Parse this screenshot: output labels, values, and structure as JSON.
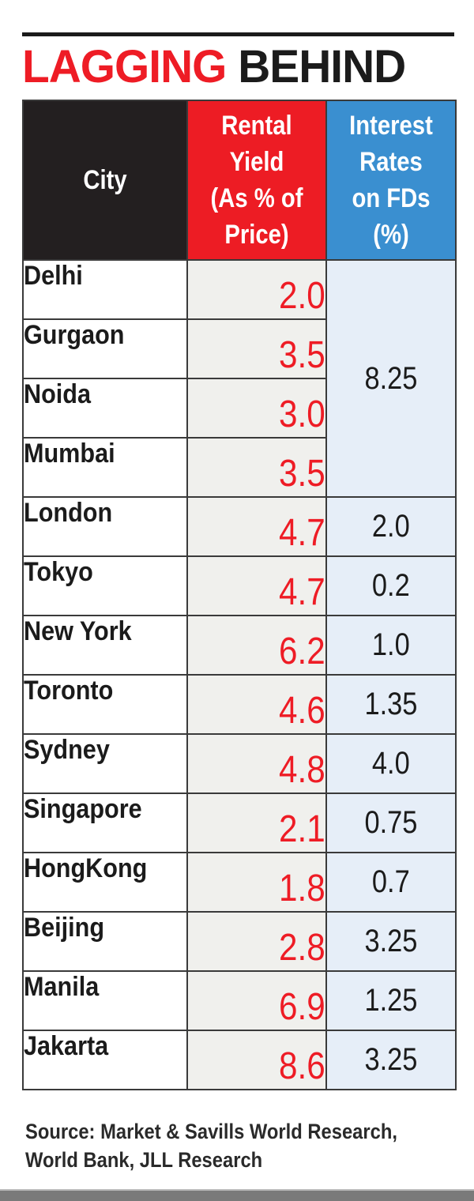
{
  "title": {
    "part1": "LAGGING",
    "part2": "BEHIND"
  },
  "colors": {
    "title_red": "#ee1c25",
    "header_city": "#231f20",
    "header_rental": "#ed1c24",
    "header_fd": "#3a8fd0",
    "rental_value": "#ee1c25",
    "fd_cell_bg": "#e6eef8",
    "rental_cell_bg": "#f0f0ed"
  },
  "table": {
    "headers": {
      "city": "City",
      "rental": [
        "Rental",
        "Yield",
        "(As % of",
        "Price)"
      ],
      "fd": [
        "Interest",
        "Rates",
        "on FDs",
        "(%)"
      ]
    },
    "indian_cities_fd_merged": "8.25",
    "rows": [
      {
        "city": "Delhi",
        "rental_yield": "2.0",
        "fd_rate": "8.25"
      },
      {
        "city": "Gurgaon",
        "rental_yield": "3.5",
        "fd_rate": "8.25"
      },
      {
        "city": "Noida",
        "rental_yield": "3.0",
        "fd_rate": "8.25"
      },
      {
        "city": "Mumbai",
        "rental_yield": "3.5",
        "fd_rate": "8.25"
      },
      {
        "city": "London",
        "rental_yield": "4.7",
        "fd_rate": "2.0"
      },
      {
        "city": "Tokyo",
        "rental_yield": "4.7",
        "fd_rate": "0.2"
      },
      {
        "city": "New York",
        "rental_yield": "6.2",
        "fd_rate": "1.0"
      },
      {
        "city": "Toronto",
        "rental_yield": "4.6",
        "fd_rate": "1.35"
      },
      {
        "city": "Sydney",
        "rental_yield": "4.8",
        "fd_rate": "4.0"
      },
      {
        "city": "Singapore",
        "rental_yield": "2.1",
        "fd_rate": "0.75"
      },
      {
        "city": "HongKong",
        "rental_yield": "1.8",
        "fd_rate": "0.7"
      },
      {
        "city": "Beijing",
        "rental_yield": "2.8",
        "fd_rate": "3.25"
      },
      {
        "city": "Manila",
        "rental_yield": "6.9",
        "fd_rate": "1.25"
      },
      {
        "city": "Jakarta",
        "rental_yield": "8.6",
        "fd_rate": "3.25"
      }
    ]
  },
  "source": {
    "line1": "Source: Market & Savills World Research,",
    "line2": "World Bank, JLL Research"
  },
  "chart_data": {
    "type": "table",
    "title": "LAGGING BEHIND",
    "columns": [
      "City",
      "Rental Yield (As % of Price)",
      "Interest Rates on FDs (%)"
    ],
    "categories": [
      "Delhi",
      "Gurgaon",
      "Noida",
      "Mumbai",
      "London",
      "Tokyo",
      "New York",
      "Toronto",
      "Sydney",
      "Singapore",
      "HongKong",
      "Beijing",
      "Manila",
      "Jakarta"
    ],
    "series": [
      {
        "name": "Rental Yield (As % of Price)",
        "values": [
          2.0,
          3.5,
          3.0,
          3.5,
          4.7,
          4.7,
          6.2,
          4.6,
          4.8,
          2.1,
          1.8,
          2.8,
          6.9,
          8.6
        ]
      },
      {
        "name": "Interest Rates on FDs (%)",
        "values": [
          8.25,
          8.25,
          8.25,
          8.25,
          2.0,
          0.2,
          1.0,
          1.35,
          4.0,
          0.75,
          0.7,
          3.25,
          1.25,
          3.25
        ]
      }
    ],
    "annotations": [
      "FD rate 8.25 is a single merged cell spanning Delhi, Gurgaon, Noida, Mumbai"
    ],
    "source": "Source: Market & Savills World Research, World Bank, JLL Research"
  }
}
